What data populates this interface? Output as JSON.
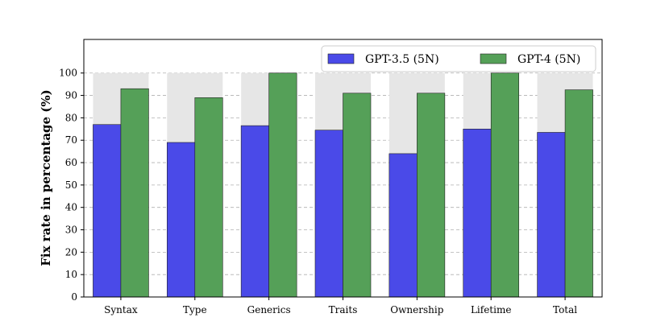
{
  "chart_data": {
    "type": "bar",
    "ylabel": "Fix rate in percentage (%)",
    "ylim": [
      0,
      115
    ],
    "yticks": [
      0,
      10,
      20,
      30,
      40,
      50,
      60,
      70,
      80,
      90,
      100
    ],
    "grid": "y-dashed",
    "legend_placement": "top-right",
    "categories": [
      "Syntax",
      "Type",
      "Generics",
      "Traits",
      "Ownership",
      "Lifetime",
      "Total"
    ],
    "background_bar_value": 100,
    "series": [
      {
        "name": "GPT-3.5 (5N)",
        "color": "#4a4ae8",
        "values": [
          77,
          69,
          76.5,
          74.5,
          64,
          75,
          73.5
        ]
      },
      {
        "name": "GPT-4 (5N)",
        "color": "#55a058",
        "values": [
          93,
          89,
          100,
          91,
          91,
          100,
          92.5
        ]
      }
    ],
    "background_color": "#e6e6e6"
  }
}
